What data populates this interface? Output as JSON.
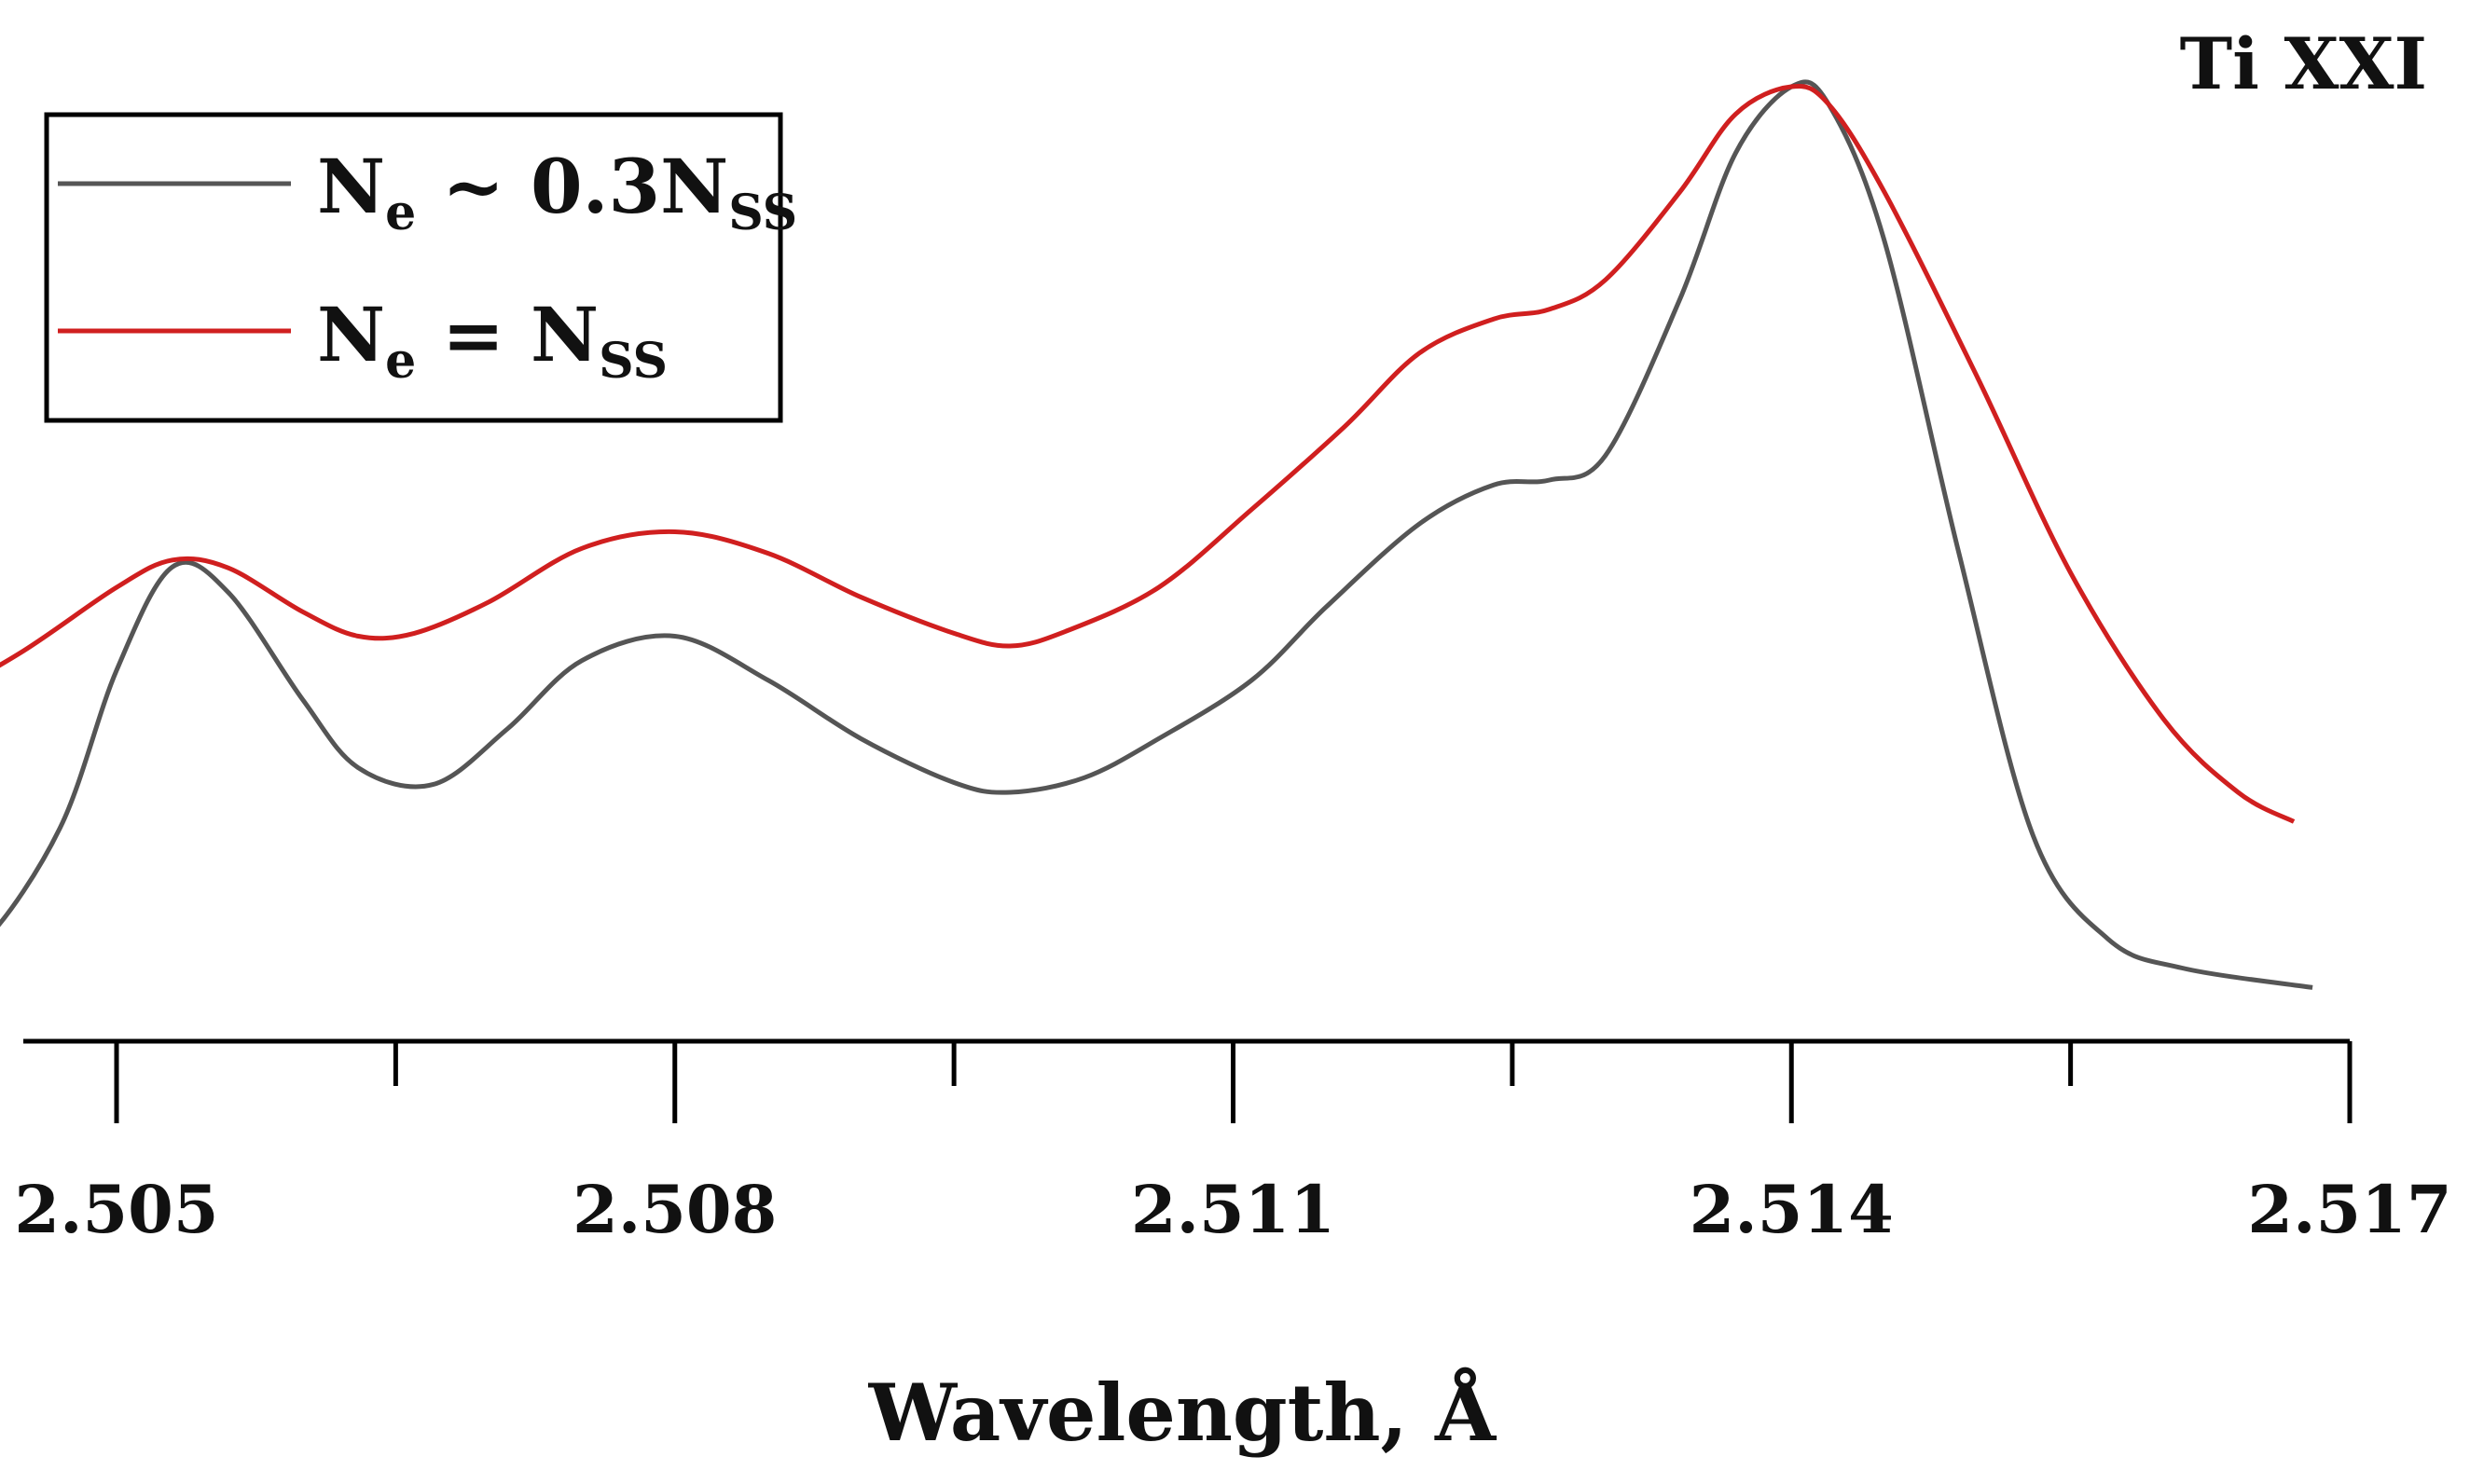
{
  "chart_data": {
    "type": "line",
    "title": "Ti XXI",
    "xlabel": "Wavelength, Å",
    "ylabel": "",
    "xlim": [
      2.5035,
      2.517
    ],
    "ylim": [
      0,
      1
    ],
    "x_ticks_major": [
      "2.505",
      "2.508",
      "2.511",
      "2.514",
      "2.517"
    ],
    "x_ticks_minor": [
      2.5035,
      2.5065,
      2.5095,
      2.5125,
      2.5155
    ],
    "legend_position": "top-left",
    "grid": false,
    "series": [
      {
        "name": "N_e ~ 0.3N_SS",
        "name_parts": {
          "main1": "N",
          "sub1": "e",
          "main2": " ~ 0.3N",
          "sub2": "SS"
        },
        "color": "#555555",
        "points": [
          [
            2.5032,
            0.075
          ],
          [
            2.5035,
            0.077
          ],
          [
            2.504,
            0.085
          ],
          [
            2.5043,
            0.105
          ],
          [
            2.5047,
            0.22
          ],
          [
            2.505,
            0.38
          ],
          [
            2.5053,
            0.486
          ],
          [
            2.5056,
            0.46
          ],
          [
            2.506,
            0.35
          ],
          [
            2.5063,
            0.28
          ],
          [
            2.5067,
            0.263
          ],
          [
            2.5071,
            0.32
          ],
          [
            2.5075,
            0.39
          ],
          [
            2.508,
            0.415
          ],
          [
            2.5085,
            0.37
          ],
          [
            2.509,
            0.31
          ],
          [
            2.5095,
            0.265
          ],
          [
            2.5098,
            0.255
          ],
          [
            2.5102,
            0.27
          ],
          [
            2.5106,
            0.31
          ],
          [
            2.5111,
            0.37
          ],
          [
            2.5115,
            0.445
          ],
          [
            2.512,
            0.53
          ],
          [
            2.5124,
            0.57
          ],
          [
            2.5127,
            0.575
          ],
          [
            2.513,
            0.6
          ],
          [
            2.5134,
            0.76
          ],
          [
            2.5137,
            0.91
          ],
          [
            2.514,
            0.978
          ],
          [
            2.5142,
            0.96
          ],
          [
            2.5145,
            0.82
          ],
          [
            2.5149,
            0.5
          ],
          [
            2.5153,
            0.21
          ],
          [
            2.5157,
            0.105
          ],
          [
            2.5161,
            0.075
          ],
          [
            2.5168,
            0.055
          ]
        ]
      },
      {
        "name": "N_e = N_SS",
        "name_parts": {
          "main1": "N",
          "sub1": "e",
          "main2": " = N",
          "sub2": "SS"
        },
        "color": "#d01f1f",
        "points": [
          [
            2.5032,
            0.29
          ],
          [
            2.5035,
            0.292
          ],
          [
            2.504,
            0.345
          ],
          [
            2.5045,
            0.4
          ],
          [
            2.505,
            0.465
          ],
          [
            2.5053,
            0.493
          ],
          [
            2.5056,
            0.485
          ],
          [
            2.506,
            0.44
          ],
          [
            2.5063,
            0.415
          ],
          [
            2.5066,
            0.418
          ],
          [
            2.507,
            0.45
          ],
          [
            2.5075,
            0.505
          ],
          [
            2.508,
            0.522
          ],
          [
            2.5085,
            0.5
          ],
          [
            2.509,
            0.455
          ],
          [
            2.5095,
            0.418
          ],
          [
            2.5098,
            0.405
          ],
          [
            2.5101,
            0.42
          ],
          [
            2.5106,
            0.465
          ],
          [
            2.5111,
            0.545
          ],
          [
            2.5116,
            0.63
          ],
          [
            2.512,
            0.705
          ],
          [
            2.5124,
            0.74
          ],
          [
            2.5127,
            0.75
          ],
          [
            2.513,
            0.78
          ],
          [
            2.5134,
            0.87
          ],
          [
            2.5137,
            0.95
          ],
          [
            2.514,
            0.978
          ],
          [
            2.5142,
            0.96
          ],
          [
            2.5145,
            0.87
          ],
          [
            2.515,
            0.68
          ],
          [
            2.5155,
            0.48
          ],
          [
            2.516,
            0.33
          ],
          [
            2.5164,
            0.255
          ],
          [
            2.5167,
            0.225
          ]
        ]
      }
    ]
  }
}
